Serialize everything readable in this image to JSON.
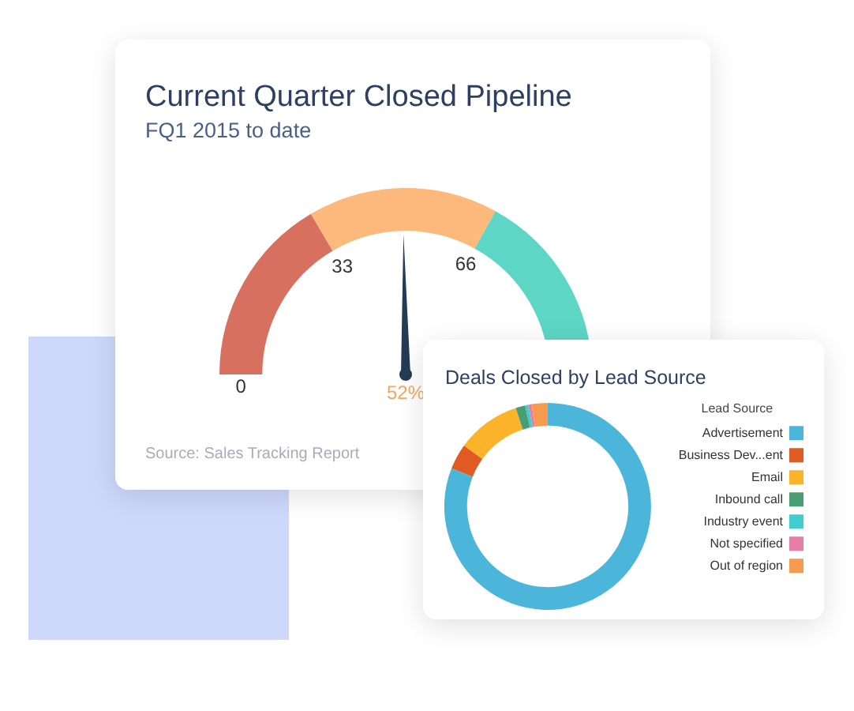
{
  "chart_data": [
    {
      "type": "donut",
      "title": "Current Quarter Closed Pipeline",
      "subtitle": "FQ1 2015 to date",
      "categories": [
        "0",
        "33",
        "66"
      ],
      "values": [
        33,
        33,
        34
      ],
      "colors": [
        "#d87060",
        "#fdb97c",
        "#5dd6c5"
      ],
      "needle": "33",
      "legend": false,
      "annotations": [
        "52%",
        "Source: Sales Tracking Report"
      ]
    },
    {
      "type": "donut",
      "title": "Deals Closed by Lead Source",
      "legend_title": "Lead Source",
      "legend": "right",
      "categories": [
        "Advertisement",
        "Business Dev...ent",
        "Email",
        "Inbound call",
        "Industry event",
        "Not specified",
        "Out of region"
      ],
      "values": [
        81,
        4,
        10,
        1.5,
        0.5,
        0.5,
        2.5
      ],
      "colors": [
        "#4bb6da",
        "#e05a24",
        "#fbb32a",
        "#4a9e74",
        "#3fcfcf",
        "#e77ea9",
        "#f79a4f"
      ]
    }
  ]
}
